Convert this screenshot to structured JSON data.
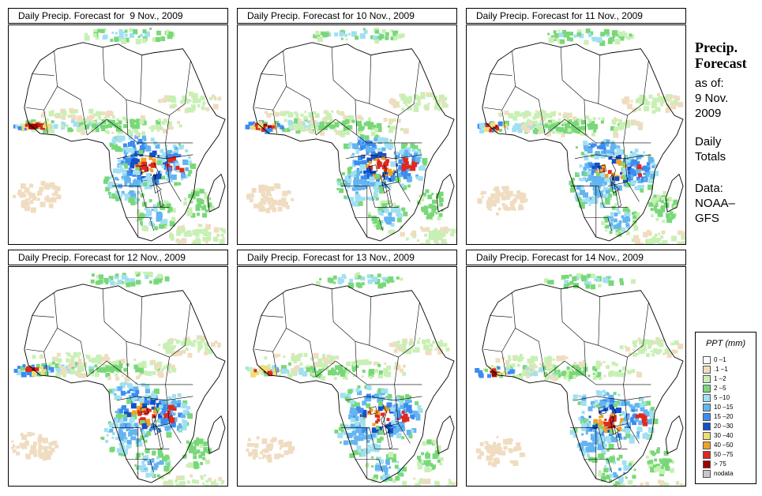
{
  "panels": [
    {
      "title_prefix": "Daily Precip. Forecast for ",
      "date": " 9 Nov., 2009"
    },
    {
      "title_prefix": "Daily Precip. Forecast for ",
      "date": "10 Nov., 2009"
    },
    {
      "title_prefix": "Daily Precip. Forecast for ",
      "date": "11 Nov., 2009"
    },
    {
      "title_prefix": "Daily Precip. Forecast for ",
      "date": "12 Nov., 2009"
    },
    {
      "title_prefix": "Daily Precip. Forecast for ",
      "date": "13 Nov., 2009"
    },
    {
      "title_prefix": "Daily Precip. Forecast for ",
      "date": "14 Nov., 2009"
    }
  ],
  "sidebar": {
    "heading_line1": "Precip.",
    "heading_line2": "Forecast",
    "asof_line1": "as of:",
    "asof_line2": "9 Nov.",
    "asof_line3": "2009",
    "totals_line1": "Daily",
    "totals_line2": "Totals",
    "data_line1": "Data:",
    "data_line2": "NOAA–",
    "data_line3": "GFS"
  },
  "legend": {
    "title": "PPT (mm)",
    "items": [
      {
        "label": "0 –1",
        "color": "#ffffff"
      },
      {
        "label": ".1 –1",
        "color": "#f0dcc0"
      },
      {
        "label": "1 –2",
        "color": "#c8f0b4"
      },
      {
        "label": "2 –5",
        "color": "#78d878"
      },
      {
        "label": "5 –10",
        "color": "#a0e0f0"
      },
      {
        "label": "10 –15",
        "color": "#64b4f0"
      },
      {
        "label": "15 –20",
        "color": "#3c8cf0"
      },
      {
        "label": "20 –30",
        "color": "#1450c8"
      },
      {
        "label": "30 –40",
        "color": "#f0dc78"
      },
      {
        "label": "40 –50",
        "color": "#f0a028"
      },
      {
        "label": "50 –75",
        "color": "#e0281e"
      },
      {
        "label": "> 75",
        "color": "#a00000"
      },
      {
        "label": "nodata",
        "color": "#c8c8c8"
      }
    ]
  }
}
